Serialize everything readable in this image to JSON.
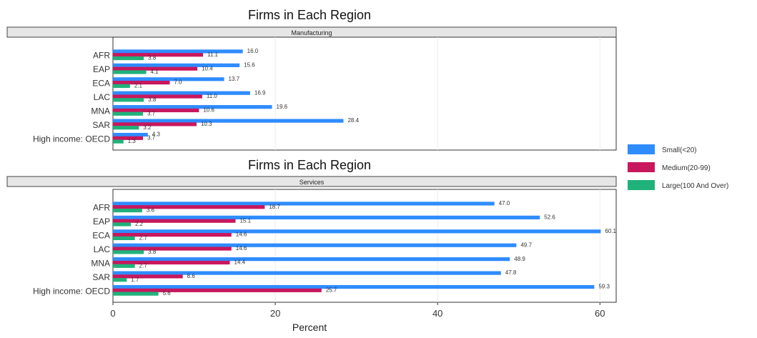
{
  "legend": {
    "placement": "right",
    "items": [
      {
        "label": "Small(<20)",
        "color": "#2f8cff"
      },
      {
        "label": "Medium(20-99)",
        "color": "#c8175d"
      },
      {
        "label": "Large(100 And Over)",
        "color": "#1fb27a"
      }
    ]
  },
  "xlabel": "Percent",
  "chart_data": [
    {
      "type": "bar",
      "orientation": "horizontal",
      "title": "Firms in Each Region",
      "strip_label": "Manufacturing",
      "categories": [
        "AFR",
        "EAP",
        "ECA",
        "LAC",
        "MNA",
        "SAR",
        "High income: OECD"
      ],
      "series": [
        {
          "name": "Small(<20)",
          "values": [
            16.0,
            15.6,
            13.7,
            16.9,
            19.6,
            28.4,
            4.3
          ]
        },
        {
          "name": "Medium(20-99)",
          "values": [
            11.1,
            10.4,
            7.0,
            11.0,
            10.6,
            10.3,
            3.7
          ]
        },
        {
          "name": "Large(100 And Over)",
          "values": [
            3.8,
            4.1,
            2.1,
            3.8,
            3.7,
            3.2,
            1.3
          ]
        }
      ],
      "xlim": [
        0,
        62
      ],
      "xticks": [
        0,
        20,
        40,
        60
      ],
      "grid": true
    },
    {
      "type": "bar",
      "orientation": "horizontal",
      "title": "Firms in Each Region",
      "strip_label": "Services",
      "categories": [
        "AFR",
        "EAP",
        "ECA",
        "LAC",
        "MNA",
        "SAR",
        "High income: OECD"
      ],
      "series": [
        {
          "name": "Small(<20)",
          "values": [
            47.0,
            52.6,
            60.1,
            49.7,
            48.9,
            47.8,
            59.3
          ]
        },
        {
          "name": "Medium(20-99)",
          "values": [
            18.7,
            15.1,
            14.6,
            14.6,
            14.4,
            8.6,
            25.7
          ]
        },
        {
          "name": "Large(100 And Over)",
          "values": [
            3.6,
            2.2,
            2.7,
            3.8,
            2.7,
            1.7,
            5.6
          ]
        }
      ],
      "xlim": [
        0,
        62
      ],
      "xticks": [
        0,
        20,
        40,
        60
      ],
      "grid": true
    }
  ]
}
